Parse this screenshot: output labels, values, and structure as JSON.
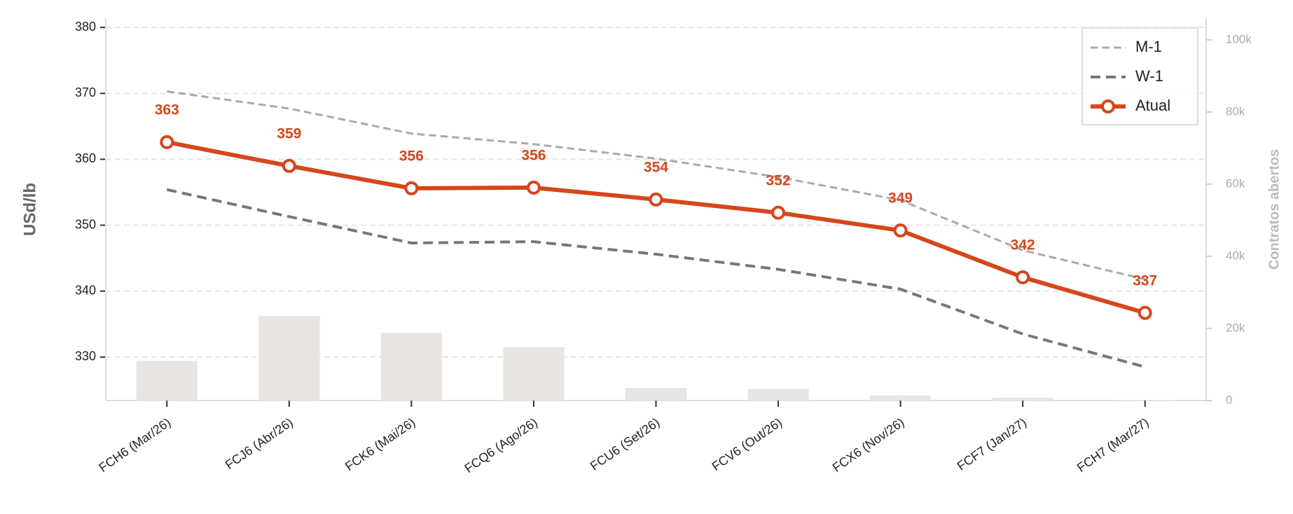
{
  "chart_data": {
    "type": "line",
    "y_label": "USd/lb",
    "y2_label": "Contratos abertos",
    "categories": [
      "FCH6 (Mar/26)",
      "FCJ6 (Abr/26)",
      "FCK6 (Mai/26)",
      "FCQ6 (Ago/26)",
      "FCU6 (Set/26)",
      "FCV6 (Out/26)",
      "FCX6 (Nov/26)",
      "FCF7 (Jan/27)",
      "FCH7 (Mar/27)"
    ],
    "series": [
      {
        "type": "bar",
        "axis": "y2",
        "color": "#e9e5e3",
        "values": [
          11000,
          23400,
          18800,
          14800,
          3500,
          3200,
          1400,
          800,
          200
        ]
      },
      {
        "name": "M-1",
        "color": "#aaaaaa",
        "linestyle": "dashed",
        "width": 3,
        "values": [
          370.3,
          367.7,
          363.9,
          362.3,
          360.1,
          357.3,
          353.8,
          346.2,
          341.8
        ]
      },
      {
        "name": "W-1",
        "color": "#777777",
        "linestyle": "dashed",
        "width": 4,
        "values": [
          355.4,
          351.3,
          347.3,
          347.5,
          345.6,
          343.3,
          340.3,
          333.5,
          328.5
        ]
      },
      {
        "name": "Atual",
        "color": "#d6461c",
        "linestyle": "solid",
        "width": 6,
        "markers": true,
        "values": [
          362.6,
          359.0,
          355.6,
          355.7,
          353.9,
          351.9,
          349.2,
          342.1,
          336.7
        ],
        "value_labels": [
          "363",
          "359",
          "356",
          "356",
          "354",
          "352",
          "349",
          "342",
          "337"
        ]
      }
    ],
    "ylim": [
      323.4,
      381.4
    ],
    "yticks": [
      330,
      340,
      350,
      360,
      370,
      380
    ],
    "y2lim": [
      0,
      106000
    ],
    "y2ticks": [
      {
        "value": 0,
        "label": "0"
      },
      {
        "value": 20000,
        "label": "20k"
      },
      {
        "value": 40000,
        "label": "40k"
      },
      {
        "value": 60000,
        "label": "60k"
      },
      {
        "value": 80000,
        "label": "80k"
      },
      {
        "value": 100000,
        "label": "100k"
      }
    ],
    "grid": true,
    "legend": "upper right"
  }
}
